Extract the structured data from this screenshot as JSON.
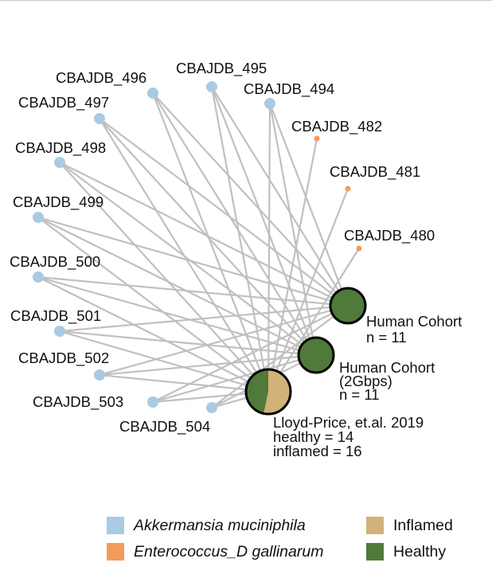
{
  "diagram": {
    "genome_nodes": [
      {
        "id": "CBAJDB_496",
        "label": "CBAJDB_496",
        "species": "akkermansia"
      },
      {
        "id": "CBAJDB_495",
        "label": "CBAJDB_495",
        "species": "akkermansia"
      },
      {
        "id": "CBAJDB_494",
        "label": "CBAJDB_494",
        "species": "akkermansia"
      },
      {
        "id": "CBAJDB_497",
        "label": "CBAJDB_497",
        "species": "akkermansia"
      },
      {
        "id": "CBAJDB_482",
        "label": "CBAJDB_482",
        "species": "enterococcus"
      },
      {
        "id": "CBAJDB_498",
        "label": "CBAJDB_498",
        "species": "akkermansia"
      },
      {
        "id": "CBAJDB_481",
        "label": "CBAJDB_481",
        "species": "enterococcus"
      },
      {
        "id": "CBAJDB_499",
        "label": "CBAJDB_499",
        "species": "akkermansia"
      },
      {
        "id": "CBAJDB_480",
        "label": "CBAJDB_480",
        "species": "enterococcus"
      },
      {
        "id": "CBAJDB_500",
        "label": "CBAJDB_500",
        "species": "akkermansia"
      },
      {
        "id": "CBAJDB_501",
        "label": "CBAJDB_501",
        "species": "akkermansia"
      },
      {
        "id": "CBAJDB_502",
        "label": "CBAJDB_502",
        "species": "akkermansia"
      },
      {
        "id": "CBAJDB_503",
        "label": "CBAJDB_503",
        "species": "akkermansia"
      },
      {
        "id": "CBAJDB_504",
        "label": "CBAJDB_504",
        "species": "akkermansia"
      }
    ],
    "cohort_nodes": [
      {
        "id": "human-cohort",
        "lines": [
          "Human Cohort",
          "n = 11"
        ],
        "healthy_fraction": 1.0
      },
      {
        "id": "human-cohort-2gbps",
        "lines": [
          "Human Cohort",
          "(2Gbps)",
          "n = 11"
        ],
        "healthy_fraction": 1.0
      },
      {
        "id": "lloyd-price",
        "lines": [
          "Lloyd-Price, et.al. 2019",
          "healthy = 14",
          "inflamed = 16"
        ],
        "healthy_fraction": 0.4667
      }
    ],
    "edges": [
      [
        "CBAJDB_496",
        "human-cohort"
      ],
      [
        "CBAJDB_496",
        "human-cohort-2gbps"
      ],
      [
        "CBAJDB_496",
        "lloyd-price"
      ],
      [
        "CBAJDB_495",
        "human-cohort"
      ],
      [
        "CBAJDB_495",
        "human-cohort-2gbps"
      ],
      [
        "CBAJDB_495",
        "lloyd-price"
      ],
      [
        "CBAJDB_494",
        "human-cohort"
      ],
      [
        "CBAJDB_494",
        "human-cohort-2gbps"
      ],
      [
        "CBAJDB_494",
        "lloyd-price"
      ],
      [
        "CBAJDB_497",
        "human-cohort"
      ],
      [
        "CBAJDB_497",
        "human-cohort-2gbps"
      ],
      [
        "CBAJDB_497",
        "lloyd-price"
      ],
      [
        "CBAJDB_498",
        "human-cohort"
      ],
      [
        "CBAJDB_498",
        "human-cohort-2gbps"
      ],
      [
        "CBAJDB_498",
        "lloyd-price"
      ],
      [
        "CBAJDB_499",
        "human-cohort"
      ],
      [
        "CBAJDB_499",
        "human-cohort-2gbps"
      ],
      [
        "CBAJDB_499",
        "lloyd-price"
      ],
      [
        "CBAJDB_500",
        "human-cohort"
      ],
      [
        "CBAJDB_500",
        "human-cohort-2gbps"
      ],
      [
        "CBAJDB_500",
        "lloyd-price"
      ],
      [
        "CBAJDB_501",
        "human-cohort"
      ],
      [
        "CBAJDB_501",
        "human-cohort-2gbps"
      ],
      [
        "CBAJDB_501",
        "lloyd-price"
      ],
      [
        "CBAJDB_502",
        "human-cohort"
      ],
      [
        "CBAJDB_502",
        "human-cohort-2gbps"
      ],
      [
        "CBAJDB_502",
        "lloyd-price"
      ],
      [
        "CBAJDB_503",
        "human-cohort"
      ],
      [
        "CBAJDB_503",
        "human-cohort-2gbps"
      ],
      [
        "CBAJDB_503",
        "lloyd-price"
      ],
      [
        "CBAJDB_504",
        "human-cohort"
      ],
      [
        "CBAJDB_504",
        "human-cohort-2gbps"
      ],
      [
        "CBAJDB_504",
        "lloyd-price"
      ],
      [
        "CBAJDB_482",
        "lloyd-price"
      ],
      [
        "CBAJDB_481",
        "lloyd-price"
      ],
      [
        "CBAJDB_480",
        "lloyd-price"
      ]
    ],
    "colors": {
      "akkermansia": "#a8cbe3",
      "enterococcus": "#f59a5d",
      "inflamed": "#d2b27a",
      "healthy": "#4f7a3b",
      "edge": "#c0c0c0"
    }
  },
  "legend": {
    "akkermansia": "Akkermansia muciniphila",
    "enterococcus": "Enterococcus_D gallinarum",
    "inflamed": "Inflamed",
    "healthy": "Healthy"
  }
}
